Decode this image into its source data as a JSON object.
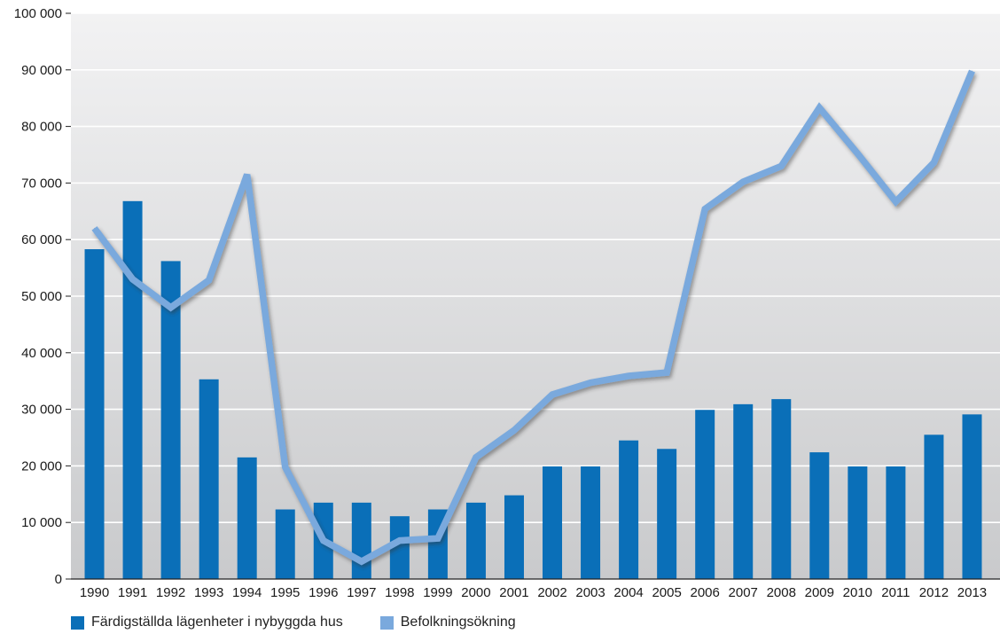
{
  "chart_data": {
    "type": "bar",
    "categories": [
      "1990",
      "1991",
      "1992",
      "1993",
      "1994",
      "1995",
      "1996",
      "1997",
      "1998",
      "1999",
      "2000",
      "2001",
      "2002",
      "2003",
      "2004",
      "2005",
      "2006",
      "2007",
      "2008",
      "2009",
      "2010",
      "2011",
      "2012",
      "2013"
    ],
    "ylim": [
      0,
      100000
    ],
    "yticks": [
      0,
      10000,
      20000,
      30000,
      40000,
      50000,
      60000,
      70000,
      80000,
      90000,
      100000
    ],
    "ytick_labels": [
      "0",
      "10 000",
      "20 000",
      "30 000",
      "40 000",
      "50 000",
      "60 000",
      "70 000",
      "80 000",
      "90 000",
      "100 000"
    ],
    "grid": true,
    "legend_position": "bottom-left",
    "series": [
      {
        "name": "Färdigställda lägenheter i nybyggda hus",
        "kind": "bar",
        "color": "#0a6fb8",
        "values": [
          58300,
          66800,
          56200,
          35300,
          21500,
          12300,
          13500,
          13500,
          11100,
          12300,
          13500,
          14800,
          19900,
          19900,
          24500,
          23000,
          29900,
          30900,
          31800,
          22400,
          19900,
          19900,
          25500,
          29100
        ]
      },
      {
        "name": "Befolkningsökning",
        "kind": "line",
        "color": "#7aa9dd",
        "values": [
          62000,
          53000,
          48000,
          52800,
          71500,
          19800,
          6800,
          3100,
          6800,
          7200,
          21500,
          26300,
          32600,
          34700,
          35900,
          36500,
          65400,
          70200,
          73000,
          83300,
          75200,
          66700,
          73600,
          89800
        ]
      }
    ]
  }
}
